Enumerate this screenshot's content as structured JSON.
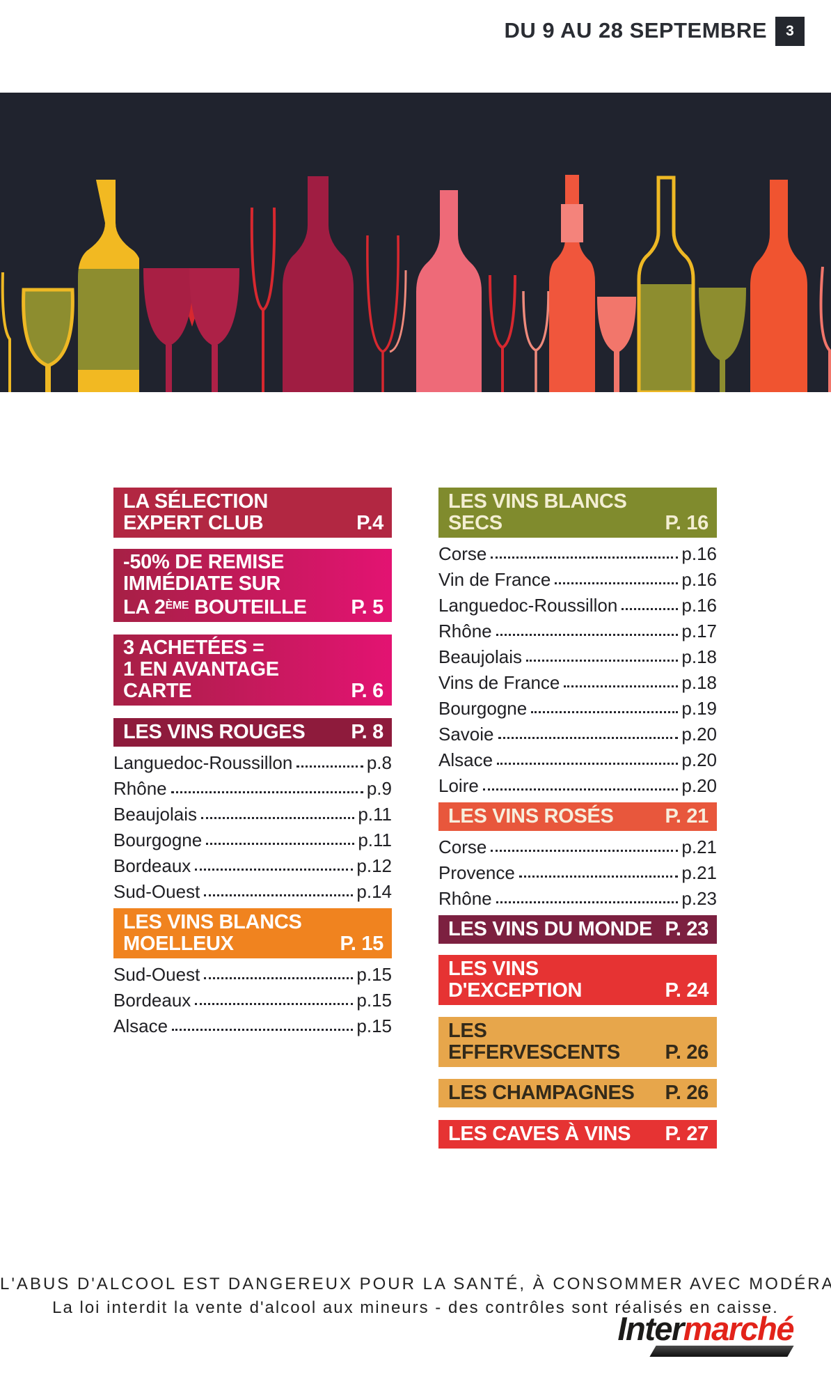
{
  "topbar": {
    "date_range": "DU 9 AU 28 SEPTEMBRE",
    "page_number": "3"
  },
  "banner": {
    "name": "wine-bottles-and-glasses-illustration",
    "palette": {
      "background": "#20232e",
      "gold": "#eeb824",
      "olive": "#8d8d2f",
      "crimson_glass": "#a81f44",
      "dark_red_bottle": "#a01d42",
      "red_outline": "#d7282f",
      "pink_bottle": "#ee6a78",
      "coral_bottle": "#f0563c",
      "coral_light": "#f4837b",
      "orange_bottle": "#f05430",
      "coral_glass": "#f2766b"
    }
  },
  "toc": {
    "left_column": [
      {
        "type": "header",
        "style": "h-crimson",
        "name": "toc-header-selection-expert-club",
        "lines": [
          "LA SÉLECTION EXPERT CLUB"
        ],
        "page": "P.4"
      },
      {
        "type": "header",
        "style": "h-gradient",
        "name": "toc-header-remise-50",
        "lines": [
          "-50% DE REMISE IMMÉDIATE SUR",
          "LA 2^ÈME^ BOUTEILLE"
        ],
        "page": "P. 5"
      },
      {
        "type": "header",
        "style": "h-gradient",
        "name": "toc-header-3-achetees",
        "lines": [
          "3 ACHETÉES =",
          "1 EN AVANTAGE CARTE"
        ],
        "page": "P. 6"
      },
      {
        "type": "header",
        "style": "h-burgundy",
        "name": "toc-header-vins-rouges",
        "lines": [
          "LES VINS ROUGES"
        ],
        "page": "P. 8"
      },
      {
        "type": "items",
        "name": "vins-rouges-items",
        "items": [
          {
            "label": "Languedoc-Roussillon",
            "page": "p.8"
          },
          {
            "label": "Rhône",
            "page": "p.9"
          },
          {
            "label": "Beaujolais",
            "page": "p.11"
          },
          {
            "label": "Bourgogne",
            "page": "p.11"
          },
          {
            "label": "Bordeaux",
            "page": "p.12"
          },
          {
            "label": "Sud-Ouest",
            "page": "p.14"
          }
        ]
      },
      {
        "type": "header",
        "style": "h-moelleux",
        "name": "toc-header-vins-blancs-moelleux",
        "lines": [
          "LES VINS BLANCS MOELLEUX"
        ],
        "page": "P. 15"
      },
      {
        "type": "items",
        "name": "vins-blancs-moelleux-items",
        "items": [
          {
            "label": "Sud-Ouest",
            "page": "p.15"
          },
          {
            "label": "Bordeaux",
            "page": "p.15"
          },
          {
            "label": "Alsace",
            "page": "p.15"
          }
        ]
      }
    ],
    "right_column": [
      {
        "type": "header",
        "style": "h-olive",
        "name": "toc-header-vins-blancs-secs",
        "lines": [
          "LES VINS BLANCS SECS"
        ],
        "page": "P. 16"
      },
      {
        "type": "items",
        "name": "vins-blancs-secs-items",
        "items": [
          {
            "label": "Corse",
            "page": "p.16"
          },
          {
            "label": "Vin de France",
            "page": "p.16"
          },
          {
            "label": "Languedoc-Roussillon",
            "page": "p.16"
          },
          {
            "label": "Rhône",
            "page": "p.17"
          },
          {
            "label": "Beaujolais",
            "page": "p.18"
          },
          {
            "label": "Vins de France",
            "page": "p.18"
          },
          {
            "label": "Bourgogne",
            "page": "p.19"
          },
          {
            "label": "Savoie",
            "page": "p.20"
          },
          {
            "label": "Alsace",
            "page": "p.20"
          },
          {
            "label": "Loire",
            "page": "p.20"
          }
        ]
      },
      {
        "type": "header",
        "style": "h-roses",
        "name": "toc-header-vins-roses",
        "lines": [
          "LES VINS ROSÉS"
        ],
        "page": "P. 21"
      },
      {
        "type": "items",
        "name": "vins-roses-items",
        "items": [
          {
            "label": "Corse",
            "page": "p.21"
          },
          {
            "label": "Provence",
            "page": "p.21"
          },
          {
            "label": "Rhône",
            "page": "p.23"
          }
        ]
      },
      {
        "type": "header",
        "style": "h-monde",
        "name": "toc-header-vins-du-monde",
        "lines": [
          "LES VINS DU MONDE"
        ],
        "page": "P. 23"
      },
      {
        "type": "header",
        "style": "h-exception",
        "name": "toc-header-vins-exception",
        "lines": [
          "LES VINS D'EXCEPTION"
        ],
        "page": "P. 24"
      },
      {
        "type": "header",
        "style": "h-effervescents",
        "name": "toc-header-effervescents",
        "lines": [
          "LES EFFERVESCENTS"
        ],
        "page": "P. 26"
      },
      {
        "type": "header",
        "style": "h-champagnes",
        "name": "toc-header-champagnes",
        "lines": [
          "LES CHAMPAGNES"
        ],
        "page": "P. 26"
      },
      {
        "type": "header",
        "style": "h-caves",
        "name": "toc-header-caves-a-vins",
        "lines": [
          "LES CAVES À VINS"
        ],
        "page": "P. 27"
      }
    ]
  },
  "footer": {
    "legal_line1": "L'ABUS D'ALCOOL EST DANGEREUX POUR LA SANTÉ, À CONSOMMER AVEC MODÉRATION",
    "legal_line2": "La loi interdit la vente d'alcool aux mineurs - des contrôles sont réalisés en caisse.",
    "brand_part1": "Inter",
    "brand_part2": "marché",
    "brand_color": "#e2231a"
  }
}
